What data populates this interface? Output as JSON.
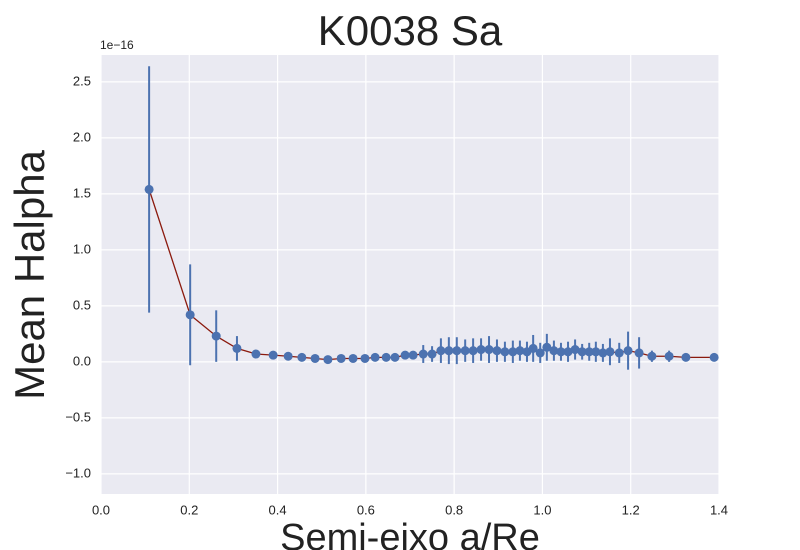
{
  "chart_data": {
    "type": "errorbar",
    "title": "K0038 Sa",
    "x_label": "Semi-eixo a/Re",
    "y_label": "Mean Halpha",
    "y_offset_label": "1e−16",
    "x": [
      0.109,
      0.202,
      0.261,
      0.308,
      0.351,
      0.39,
      0.424,
      0.455,
      0.485,
      0.514,
      0.544,
      0.571,
      0.598,
      0.621,
      0.646,
      0.666,
      0.689,
      0.707,
      0.73,
      0.75,
      0.77,
      0.788,
      0.806,
      0.825,
      0.843,
      0.861,
      0.879,
      0.897,
      0.915,
      0.933,
      0.949,
      0.965,
      0.979,
      0.995,
      1.01,
      1.026,
      1.042,
      1.058,
      1.074,
      1.09,
      1.106,
      1.121,
      1.137,
      1.153,
      1.174,
      1.194,
      1.219,
      1.248,
      1.287,
      1.325,
      1.389
    ],
    "values": [
      1.54,
      0.42,
      0.23,
      0.12,
      0.07,
      0.06,
      0.05,
      0.04,
      0.03,
      0.02,
      0.03,
      0.03,
      0.03,
      0.04,
      0.04,
      0.04,
      0.06,
      0.06,
      0.07,
      0.07,
      0.1,
      0.1,
      0.1,
      0.1,
      0.1,
      0.11,
      0.11,
      0.1,
      0.09,
      0.09,
      0.1,
      0.09,
      0.12,
      0.08,
      0.13,
      0.1,
      0.09,
      0.09,
      0.11,
      0.09,
      0.09,
      0.09,
      0.08,
      0.09,
      0.08,
      0.1,
      0.08,
      0.05,
      0.05,
      0.04,
      0.04
    ],
    "errors": [
      1.1,
      0.45,
      0.23,
      0.11,
      0.02,
      0.02,
      0.01,
      0.01,
      0.01,
      0.01,
      0.01,
      0.01,
      0.01,
      0.01,
      0.01,
      0.01,
      0.03,
      0.03,
      0.08,
      0.07,
      0.11,
      0.12,
      0.12,
      0.1,
      0.11,
      0.1,
      0.12,
      0.1,
      0.09,
      0.1,
      0.09,
      0.09,
      0.12,
      0.09,
      0.12,
      0.09,
      0.08,
      0.09,
      0.09,
      0.07,
      0.08,
      0.09,
      0.08,
      0.12,
      0.09,
      0.17,
      0.14,
      0.05,
      0.05,
      0.03,
      0.02
    ],
    "color": "#4c72b0",
    "line_color": "#8b1a0e",
    "xlim": [
      0,
      1.4
    ],
    "ylim": [
      -1.18,
      2.74
    ],
    "xticks": [
      {
        "value": 0,
        "label": "0.0"
      },
      0.2,
      0.4,
      0.6,
      0.8,
      {
        "value": 1,
        "label": "1.0"
      },
      1.2,
      1.4
    ],
    "yticks": [
      {
        "value": -1,
        "label": "−1.0"
      },
      {
        "value": -0.5,
        "label": "−0.5"
      },
      {
        "value": 0,
        "label": "0.0"
      },
      0.5,
      {
        "value": 1,
        "label": "1.0"
      },
      1.5,
      {
        "value": 2,
        "label": "2.0"
      },
      2.5
    ],
    "grid": true
  }
}
